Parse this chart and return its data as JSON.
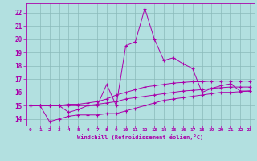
{
  "background_color": "#b2e0e0",
  "grid_color": "#8ababa",
  "line_color": "#aa00aa",
  "xlabel": "Windchill (Refroidissement éolien,°C)",
  "xlabel_color": "#aa00aa",
  "xlim": [
    -0.5,
    23.5
  ],
  "ylim": [
    13.5,
    22.7
  ],
  "yticks": [
    14,
    15,
    16,
    17,
    18,
    19,
    20,
    21,
    22
  ],
  "xticks": [
    0,
    1,
    2,
    3,
    4,
    5,
    6,
    7,
    8,
    9,
    10,
    11,
    12,
    13,
    14,
    15,
    16,
    17,
    18,
    19,
    20,
    21,
    22,
    23
  ],
  "series": [
    {
      "x": [
        0,
        1,
        2,
        3,
        4,
        5,
        6,
        7,
        8,
        9,
        10,
        11,
        12,
        13,
        14,
        15,
        16,
        17,
        18,
        19,
        20,
        21,
        22,
        23
      ],
      "y": [
        15.0,
        15.0,
        13.8,
        14.0,
        14.2,
        14.3,
        14.3,
        14.3,
        14.4,
        14.4,
        14.6,
        14.8,
        15.0,
        15.2,
        15.4,
        15.5,
        15.6,
        15.7,
        15.8,
        15.9,
        16.0,
        16.0,
        16.05,
        16.1
      ]
    },
    {
      "x": [
        0,
        1,
        2,
        3,
        4,
        5,
        6,
        7,
        8,
        9,
        10,
        11,
        12,
        13,
        14,
        15,
        16,
        17,
        18,
        19,
        20,
        21,
        22,
        23
      ],
      "y": [
        15.0,
        15.0,
        15.0,
        15.0,
        15.0,
        15.0,
        15.0,
        15.1,
        15.2,
        15.3,
        15.5,
        15.6,
        15.7,
        15.8,
        15.9,
        16.0,
        16.1,
        16.15,
        16.2,
        16.3,
        16.35,
        16.4,
        16.4,
        16.4
      ]
    },
    {
      "x": [
        0,
        1,
        2,
        3,
        4,
        5,
        6,
        7,
        8,
        9,
        10,
        11,
        12,
        13,
        14,
        15,
        16,
        17,
        18,
        19,
        20,
        21,
        22,
        23
      ],
      "y": [
        15.0,
        15.0,
        15.0,
        15.0,
        15.1,
        15.1,
        15.2,
        15.3,
        15.5,
        15.8,
        16.0,
        16.2,
        16.4,
        16.5,
        16.6,
        16.7,
        16.75,
        16.8,
        16.8,
        16.85,
        16.85,
        16.85,
        16.85,
        16.85
      ]
    },
    {
      "x": [
        0,
        1,
        2,
        3,
        4,
        5,
        6,
        7,
        8,
        9,
        10,
        11,
        12,
        13,
        14,
        15,
        16,
        17,
        18,
        19,
        20,
        21,
        22,
        23
      ],
      "y": [
        15.0,
        15.0,
        15.0,
        15.0,
        14.5,
        14.7,
        15.0,
        15.0,
        16.6,
        15.0,
        19.5,
        19.8,
        22.3,
        20.0,
        18.4,
        18.6,
        18.15,
        17.8,
        16.0,
        16.3,
        16.5,
        16.65,
        16.1,
        16.1
      ]
    }
  ]
}
